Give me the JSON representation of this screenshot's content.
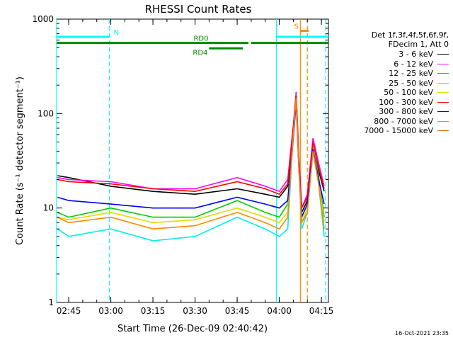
{
  "chart_data": {
    "type": "line",
    "title": "RHESSI Count Rates",
    "xlabel": "Start Time (26-Dec-09 02:40:42)",
    "ylabel": "Count Rate (s⁻¹ detector segment⁻¹)",
    "yscale": "log",
    "ylim": [
      1,
      1000
    ],
    "xlim": [
      "02:40:42",
      "04:17:30"
    ],
    "x_ticks": [
      "02:45",
      "03:00",
      "03:15",
      "03:30",
      "03:45",
      "04:00",
      "04:15"
    ],
    "y_ticks": [
      "1",
      "10",
      "100",
      "1000"
    ],
    "grid": false,
    "legend_position": "right",
    "legend_header": [
      "Det 1f,3f,4f,5f,6f,9f,",
      "FDecim 1, Att 0"
    ],
    "timestamp": "16-Oct-2021 23:35",
    "colors": {
      "3 - 6 keV": "#000000",
      "6 - 12 keV": "#ff00ff",
      "12 - 25 keV": "#00cc00",
      "25 - 50 keV": "#00eeee",
      "50 - 100 keV": "#dddd00",
      "100 - 300 keV": "#ff0000",
      "300 - 800 keV": "#0000ff",
      "800 - 7000 keV": "#ff8800",
      "7000 - 15000 keV": "#cc6600"
    },
    "flag_bars": [
      {
        "label": "N",
        "color": "#00ffff",
        "start": "02:40:42",
        "end": "02:59:30",
        "level": 650
      },
      {
        "label": "RD0",
        "color": "#008800",
        "start": "02:40:42",
        "end": "03:49:00",
        "level": 560
      },
      {
        "label": "RD4",
        "color": "#008800",
        "start": "03:35:00",
        "end": "03:47:00",
        "level": 490
      },
      {
        "label": "",
        "color": "#008800",
        "start": "03:50:00",
        "end": "04:17:30",
        "level": 560
      },
      {
        "label": "",
        "color": "#00ffff",
        "start": "03:59:00",
        "end": "04:17:30",
        "level": 650
      },
      {
        "label": "S",
        "color": "#ff8800",
        "start": "04:07:20",
        "end": "04:10:30",
        "level": 750
      }
    ],
    "markers": [
      {
        "time": "02:40:42",
        "color": "#00ffff",
        "style": "solid"
      },
      {
        "time": "02:59:30",
        "color": "#00ffff",
        "style": "dashed"
      },
      {
        "time": "03:59:00",
        "color": "#00ffff",
        "style": "solid"
      },
      {
        "time": "04:16:30",
        "color": "#00ffff",
        "style": "dashed"
      },
      {
        "time": "04:07:30",
        "color": "#ff8800",
        "style": "solid"
      },
      {
        "time": "04:10:00",
        "color": "#ff8800",
        "style": "dashed"
      }
    ],
    "series": [
      {
        "name": "3 - 6 keV",
        "x": [
          "02:41",
          "02:45",
          "03:00",
          "03:15",
          "03:30",
          "03:45",
          "03:55",
          "04:00",
          "04:03",
          "04:05",
          "04:06",
          "04:07",
          "04:08",
          "04:10",
          "04:12",
          "04:14",
          "04:16"
        ],
        "y": [
          22,
          21,
          17,
          15,
          14,
          16,
          14,
          13,
          17,
          60,
          140,
          30,
          9,
          12,
          45,
          25,
          15
        ]
      },
      {
        "name": "6 - 12 keV",
        "x": [
          "02:41",
          "02:45",
          "03:00",
          "03:15",
          "03:30",
          "03:45",
          "03:55",
          "04:00",
          "04:03",
          "04:05",
          "04:06",
          "04:07",
          "04:08",
          "04:10",
          "04:12",
          "04:14",
          "04:16"
        ],
        "y": [
          21,
          20,
          19,
          16,
          16,
          21,
          17,
          15,
          20,
          75,
          170,
          35,
          10,
          14,
          55,
          30,
          17
        ]
      },
      {
        "name": "12 - 25 keV",
        "x": [
          "02:41",
          "02:45",
          "03:00",
          "03:15",
          "03:30",
          "03:45",
          "03:55",
          "04:00",
          "04:03",
          "04:05",
          "04:06",
          "04:07",
          "04:08",
          "04:10",
          "04:12",
          "04:14",
          "04:16"
        ],
        "y": [
          9,
          8,
          10,
          8,
          8,
          12,
          9,
          8,
          11,
          70,
          160,
          30,
          8,
          11,
          50,
          22,
          8
        ]
      },
      {
        "name": "25 - 50 keV",
        "x": [
          "02:41",
          "02:45",
          "03:00",
          "03:15",
          "03:30",
          "03:45",
          "03:55",
          "04:00",
          "04:03",
          "04:05",
          "04:06",
          "04:07",
          "04:08",
          "04:10",
          "04:12",
          "04:14",
          "04:16"
        ],
        "y": [
          6,
          5,
          6,
          4.5,
          5,
          8,
          6,
          5,
          6,
          60,
          140,
          25,
          6,
          9,
          40,
          18,
          5
        ]
      },
      {
        "name": "50 - 100 keV",
        "x": [
          "02:41",
          "02:45",
          "03:00",
          "03:15",
          "03:30",
          "03:45",
          "03:55",
          "04:00",
          "04:03",
          "04:05",
          "04:06",
          "04:07",
          "04:08",
          "04:10",
          "04:12",
          "04:14",
          "04:16"
        ],
        "y": [
          8,
          7.5,
          9,
          7,
          7.5,
          10,
          8,
          7,
          9,
          65,
          150,
          28,
          7,
          10,
          45,
          20,
          7
        ]
      },
      {
        "name": "100 - 300 keV",
        "x": [
          "02:41",
          "02:45",
          "03:00",
          "03:15",
          "03:30",
          "03:45",
          "03:55",
          "04:00",
          "04:03",
          "04:05",
          "04:06",
          "04:07",
          "04:08",
          "04:10",
          "04:12",
          "04:14",
          "04:16"
        ],
        "y": [
          20,
          19,
          18,
          16,
          15,
          19,
          16,
          14,
          18,
          70,
          155,
          32,
          10,
          13,
          50,
          27,
          16
        ]
      },
      {
        "name": "300 - 800 keV",
        "x": [
          "02:41",
          "02:45",
          "03:00",
          "03:15",
          "03:30",
          "03:45",
          "03:55",
          "04:00",
          "04:03",
          "04:05",
          "04:06",
          "04:07",
          "04:08",
          "04:10",
          "04:12",
          "04:14",
          "04:16"
        ],
        "y": [
          13,
          12,
          11,
          10,
          10,
          13,
          11,
          10,
          12,
          55,
          130,
          26,
          8,
          11,
          42,
          20,
          11
        ]
      },
      {
        "name": "800 - 7000 keV",
        "x": [
          "02:41",
          "02:45",
          "03:00",
          "03:15",
          "03:30",
          "03:45",
          "03:55",
          "04:00",
          "04:03",
          "04:05",
          "04:06",
          "04:07",
          "04:08",
          "04:10",
          "04:12",
          "04:14",
          "04:16"
        ],
        "y": [
          8,
          7,
          8,
          6,
          6.5,
          9,
          7,
          6,
          8,
          60,
          145,
          26,
          7,
          9,
          40,
          18,
          6
        ]
      },
      {
        "name": "7000 - 15000 keV",
        "x": [],
        "y": []
      }
    ]
  }
}
